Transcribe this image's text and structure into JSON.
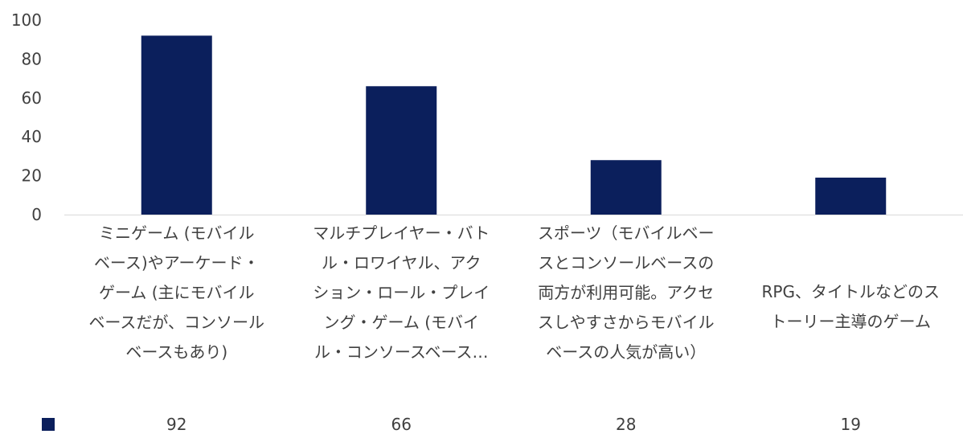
{
  "colors": {
    "bar": "#0b1f5c",
    "axis": "#d9d9d9"
  },
  "chart_data": {
    "type": "bar",
    "title": "",
    "xlabel": "",
    "ylabel": "",
    "ylim": [
      0,
      100
    ],
    "yticks": [
      "0",
      "20",
      "40",
      "60",
      "80",
      "100"
    ],
    "grid": false,
    "legend": "table-bottom-left",
    "categories": [
      "ミニゲーム (モバイル\nベース)やアーケード・\nゲーム (主にモバイル\nベースだが、コンソール\nベースもあり)",
      "マルチプレイヤー・バト\nル・ロワイヤル、アク\nション・ロール・プレイ\nング・ゲーム (モバイ\nル・コンソースベース…",
      "スポーツ（モバイルベー\nスとコンソールベースの\n両方が利用可能。アクセ\nスしやすさからモバイル\nベースの人気が高い）",
      "RPG、タイトルなどのス\nトーリー主導のゲーム"
    ],
    "values": [
      92,
      66,
      28,
      19
    ],
    "value_labels": [
      "92",
      "66",
      "28",
      "19"
    ]
  }
}
